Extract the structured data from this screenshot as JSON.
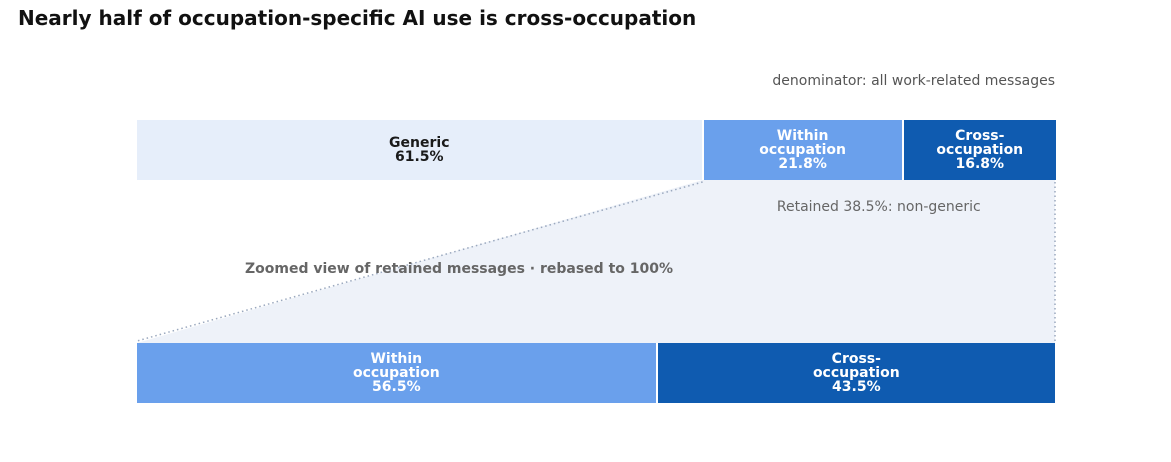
{
  "chart_data": [
    {
      "type": "stacked-bar",
      "title": "Nearly half of occupation-specific AI use is cross-occupation",
      "subtitle": "denominator: all work-related messages",
      "xlim": [
        0,
        100
      ],
      "series": [
        {
          "name": "Generic",
          "color": "#e6eefa",
          "values": [
            61.5
          ],
          "value_labels": [
            "61.5%"
          ]
        },
        {
          "name": "Within occupation",
          "color": "#6aa0ec",
          "values": [
            21.8
          ],
          "value_labels": [
            "21.8%"
          ]
        },
        {
          "name": "Cross-occupation",
          "color": "#0f5bb0",
          "values": [
            16.8
          ],
          "value_labels": [
            "16.8%"
          ]
        }
      ]
    },
    {
      "type": "stacked-bar",
      "annotations": [
        "Retained 38.5%: non-generic",
        "Zoomed view of retained messages · rebased to 100%"
      ],
      "xlim": [
        0,
        100
      ],
      "series": [
        {
          "name": "Within occupation",
          "color": "#6aa0ec",
          "values": [
            56.5
          ],
          "value_labels": [
            "56.5%"
          ]
        },
        {
          "name": "Cross-occupation",
          "color": "#0f5bb0",
          "values": [
            43.5
          ],
          "value_labels": [
            "43.5%"
          ]
        }
      ]
    }
  ]
}
